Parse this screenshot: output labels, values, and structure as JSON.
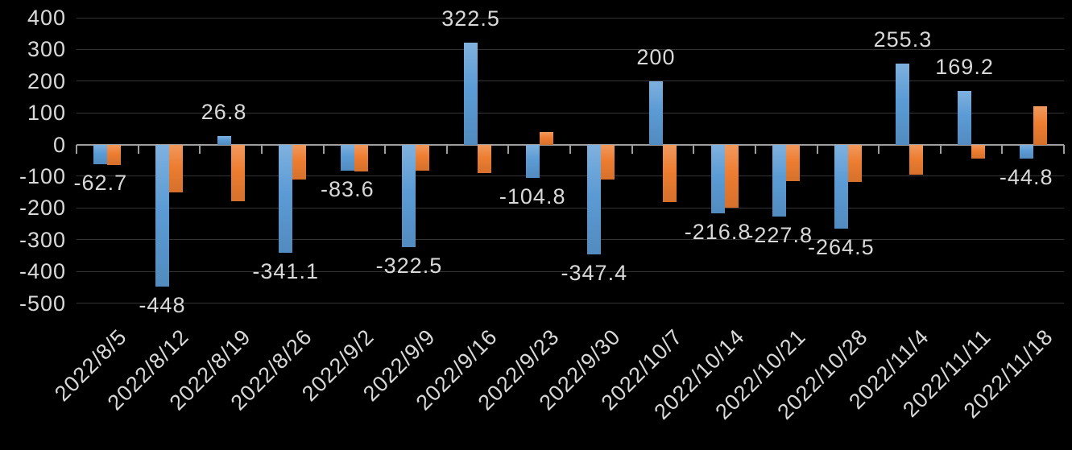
{
  "chart_data": {
    "type": "bar",
    "orientation": "vertical-grouped",
    "categories": [
      "2022/8/5",
      "2022/8/12",
      "2022/8/19",
      "2022/8/26",
      "2022/9/2",
      "2022/9/9",
      "2022/9/16",
      "2022/9/23",
      "2022/9/30",
      "2022/10/7",
      "2022/10/14",
      "2022/10/21",
      "2022/10/28",
      "2022/11/4",
      "2022/11/11",
      "2022/11/18"
    ],
    "series": [
      {
        "id": "blue-series",
        "color": "#5B9BD5",
        "values": [
          -62.7,
          -448,
          26.8,
          -341.1,
          -83.6,
          -322.5,
          322.5,
          -104.8,
          -347.4,
          200,
          -216.8,
          -227.8,
          -264.5,
          255.3,
          169.2,
          -44.8
        ],
        "data_labels": [
          "-62.7",
          "-448",
          "26.8",
          "-341.1",
          "-83.6",
          "-322.5",
          "322.5",
          "-104.8",
          "-347.4",
          "200",
          "-216.8",
          "-227.8",
          "-264.5",
          "255.3",
          "169.2",
          "-44.8"
        ],
        "labels_shown": true
      },
      {
        "id": "orange-series",
        "color": "#ED7D31",
        "values": [
          -65,
          -150,
          -180,
          -110,
          -86,
          -82,
          -90,
          40,
          -110,
          -182,
          -200,
          -115,
          -118,
          -94,
          -45,
          122
        ],
        "labels_shown": false
      }
    ],
    "ylim": [
      -500,
      400
    ],
    "y_ticks": [
      400,
      300,
      200,
      100,
      0,
      -100,
      -200,
      -300,
      -400,
      -500
    ],
    "grid": true,
    "legend": "none",
    "title": "",
    "x_label_rotation_deg": -45,
    "background_color": "#000000",
    "gridline_color": "#343434",
    "axis_line_color": "#9e9e9e",
    "text_color": "#d9d9d9"
  }
}
